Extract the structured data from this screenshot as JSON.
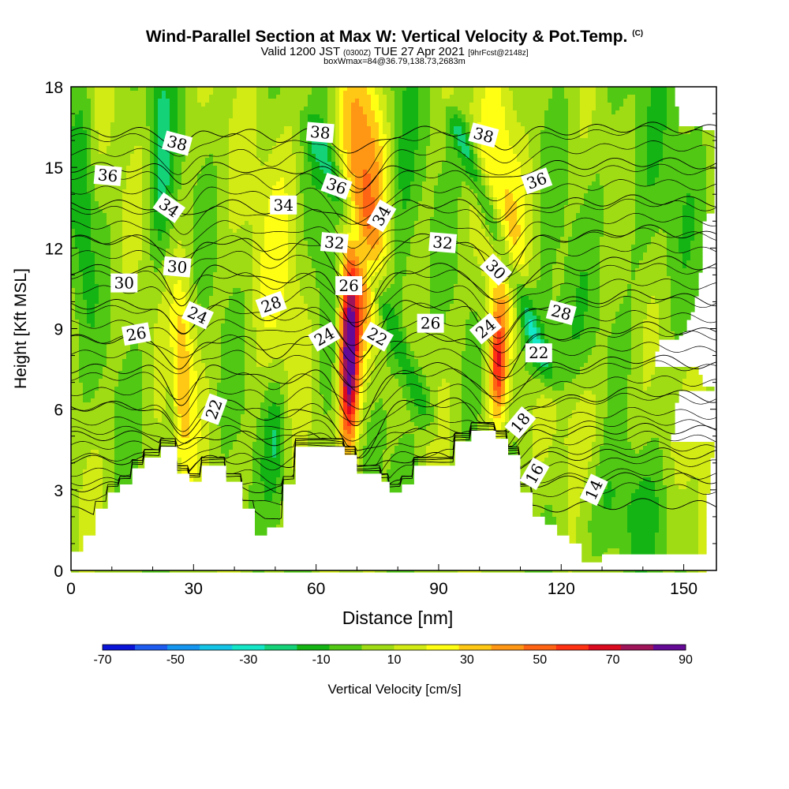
{
  "header": {
    "title": "Wind-Parallel Section at Max W: Vertical Velocity & Pot.Temp.",
    "title_suffix": "(C)",
    "valid_prefix": "Valid 1200 JST",
    "valid_utc": "(0300Z)",
    "valid_date": "TUE 27 Apr 2021",
    "forecast_tag": "[9hrFcst@2148z]",
    "box_info": "boxWmax=84@36.79,138.73,2683m"
  },
  "chart_data": {
    "type": "heatmap",
    "xlabel": "Distance [nm]",
    "ylabel": "Height [Kft MSL]",
    "xlim": [
      0,
      158
    ],
    "ylim": [
      0,
      18
    ],
    "x_ticks": [
      0,
      30,
      60,
      90,
      120,
      150
    ],
    "y_ticks": [
      0,
      3,
      6,
      9,
      12,
      15,
      18
    ],
    "colorbar": {
      "title": "Vertical Velocity [cm/s]",
      "tick_labels": [
        "-70",
        "-50",
        "-30",
        "-10",
        "10",
        "30",
        "50",
        "70",
        "90"
      ],
      "levels": [
        -80,
        -70,
        -60,
        -50,
        -40,
        -30,
        -20,
        -10,
        0,
        10,
        20,
        30,
        40,
        50,
        60,
        70,
        80,
        90
      ],
      "colors": [
        "#0a14d8",
        "#1e5cf0",
        "#1496f0",
        "#14c4e6",
        "#14e6c8",
        "#14d278",
        "#14b414",
        "#50c814",
        "#a0dc14",
        "#d2eb14",
        "#ffff14",
        "#ffc814",
        "#ff9614",
        "#ff6414",
        "#ff3214",
        "#dc0a1e",
        "#a0145a",
        "#640a96"
      ]
    },
    "terrain": {
      "x": [
        0,
        3,
        3,
        6,
        6,
        9,
        9,
        12,
        12,
        15,
        15,
        18,
        18,
        22,
        22,
        26,
        26,
        29,
        29,
        32,
        32,
        38,
        38,
        42,
        42,
        45,
        45,
        48,
        48,
        52,
        52,
        55,
        55,
        67,
        67,
        70,
        70,
        76,
        76,
        78,
        78,
        81,
        81,
        84,
        84,
        94,
        94,
        98,
        98,
        104,
        104,
        107,
        107,
        110,
        110,
        113,
        113,
        116,
        116,
        119,
        119,
        122,
        122,
        125,
        125,
        130,
        130,
        158
      ],
      "y": [
        0.7,
        0.7,
        1.3,
        1.3,
        2.3,
        2.3,
        2.9,
        2.9,
        3.2,
        3.2,
        3.8,
        3.8,
        4.2,
        4.2,
        4.6,
        4.6,
        3.6,
        3.6,
        3.3,
        3.3,
        3.9,
        3.9,
        3.3,
        3.3,
        2.3,
        2.3,
        1.3,
        1.3,
        1.6,
        1.6,
        3.2,
        3.2,
        4.6,
        4.6,
        4.3,
        4.3,
        3.6,
        3.6,
        3.3,
        3.3,
        2.9,
        2.9,
        3.2,
        3.2,
        3.9,
        3.9,
        4.8,
        4.8,
        5.2,
        5.2,
        4.9,
        4.9,
        4.3,
        4.3,
        2.9,
        2.9,
        2.0,
        2.0,
        1.7,
        1.7,
        1.3,
        1.3,
        1.0,
        1.0,
        0.3,
        0.3,
        0.6,
        0.6
      ]
    },
    "w_features": [
      {
        "x": 68,
        "y": 8.0,
        "sx": 1.6,
        "sy": 2.3,
        "w": 92
      },
      {
        "x": 69.5,
        "y": 10.5,
        "sx": 3,
        "sy": 3,
        "w": 30
      },
      {
        "x": 74,
        "y": 13.0,
        "sx": 3.5,
        "sy": 4,
        "w": 25
      },
      {
        "x": 70,
        "y": 16.5,
        "sx": 3.5,
        "sy": 2.5,
        "w": 25
      },
      {
        "x": 104.5,
        "y": 7.7,
        "sx": 1.5,
        "sy": 1.5,
        "w": 55
      },
      {
        "x": 106,
        "y": 13.0,
        "sx": 4,
        "sy": 5,
        "w": 25
      },
      {
        "x": 27,
        "y": 7.3,
        "sx": 2.5,
        "sy": 2.5,
        "w": 35
      },
      {
        "x": 52,
        "y": 12.5,
        "sx": 5,
        "sy": 4,
        "w": 15
      },
      {
        "x": 158,
        "y": 4.5,
        "sx": 3,
        "sy": 4,
        "w": 20
      },
      {
        "x": 126,
        "y": 5.8,
        "sx": 5,
        "sy": 1.5,
        "w": 10
      },
      {
        "x": 80,
        "y": 13.0,
        "sx": 3,
        "sy": 6,
        "w": -15
      },
      {
        "x": 63,
        "y": 13.0,
        "sx": 4,
        "sy": 5,
        "w": -12
      },
      {
        "x": 24.5,
        "y": 6.5,
        "sx": 1.2,
        "sy": 2,
        "w": -20
      },
      {
        "x": 22,
        "y": 15.5,
        "sx": 2,
        "sy": 3,
        "w": -25
      },
      {
        "x": 3,
        "y": 14.0,
        "sx": 2,
        "sy": 3,
        "w": -20
      },
      {
        "x": 50,
        "y": 5.0,
        "sx": 2,
        "sy": 1.5,
        "w": -20
      },
      {
        "x": 115,
        "y": 8.5,
        "sx": 6,
        "sy": 1.5,
        "w": -15
      },
      {
        "x": 136,
        "y": 2.0,
        "sx": 10,
        "sy": 1.5,
        "w": -12
      },
      {
        "x": 140,
        "y": 14.0,
        "sx": 10,
        "sy": 4,
        "w": -8
      }
    ],
    "w_bands": [
      {
        "x0": 62,
        "y0": 15.5,
        "x1": 85,
        "y1": 6.5,
        "sd": 2.0,
        "w": -22
      },
      {
        "x0": 96,
        "y0": 16.0,
        "x1": 115,
        "y1": 8.0,
        "sd": 1.8,
        "w": -30
      }
    ],
    "theta_contours": [
      {
        "level": 14,
        "y0": 2.2,
        "y1": 2.4
      },
      {
        "level": 16,
        "y0": 3.1,
        "y1": 3.4
      },
      {
        "level": 18,
        "y0": 4.1,
        "y1": 4.3
      },
      {
        "level": 20,
        "y0": 5.0,
        "y1": 5.2
      },
      {
        "level": 22,
        "y0": 6.1,
        "y1": 6.4
      },
      {
        "level": 24,
        "y0": 7.5,
        "y1": 7.6
      },
      {
        "level": 26,
        "y0": 8.6,
        "y1": 8.8
      },
      {
        "level": 28,
        "y0": 9.9,
        "y1": 10.0
      },
      {
        "level": 30,
        "y0": 11.2,
        "y1": 11.3
      },
      {
        "level": 32,
        "y0": 12.3,
        "y1": 12.4
      },
      {
        "level": 34,
        "y0": 13.6,
        "y1": 13.7
      },
      {
        "level": 36,
        "y0": 15.0,
        "y1": 15.1
      },
      {
        "level": 38,
        "y0": 16.3,
        "y1": 16.4
      }
    ],
    "contour_labels": [
      {
        "text": "38",
        "x": 26,
        "y": 15.9,
        "rot": 15
      },
      {
        "text": "38",
        "x": 61,
        "y": 16.3,
        "rot": 5
      },
      {
        "text": "38",
        "x": 101,
        "y": 16.2,
        "rot": 15
      },
      {
        "text": "36",
        "x": 9,
        "y": 14.7,
        "rot": 5
      },
      {
        "text": "36",
        "x": 65,
        "y": 14.3,
        "rot": 20
      },
      {
        "text": "36",
        "x": 114,
        "y": 14.5,
        "rot": -20
      },
      {
        "text": "34",
        "x": 24,
        "y": 13.5,
        "rot": 35
      },
      {
        "text": "34",
        "x": 52,
        "y": 13.6,
        "rot": 0
      },
      {
        "text": "34",
        "x": 76,
        "y": 13.2,
        "rot": -60
      },
      {
        "text": "32",
        "x": 64.5,
        "y": 12.2,
        "rot": 5
      },
      {
        "text": "32",
        "x": 91,
        "y": 12.2,
        "rot": 5
      },
      {
        "text": "30",
        "x": 26,
        "y": 11.3,
        "rot": 5
      },
      {
        "text": "30",
        "x": 13,
        "y": 10.7,
        "rot": 0
      },
      {
        "text": "30",
        "x": 104,
        "y": 11.2,
        "rot": 45
      },
      {
        "text": "28",
        "x": 49,
        "y": 9.9,
        "rot": -20
      },
      {
        "text": "28",
        "x": 120,
        "y": 9.6,
        "rot": 15
      },
      {
        "text": "26",
        "x": 68,
        "y": 10.6,
        "rot": 0
      },
      {
        "text": "26",
        "x": 16,
        "y": 8.8,
        "rot": -10
      },
      {
        "text": "26",
        "x": 88,
        "y": 9.2,
        "rot": 0
      },
      {
        "text": "24",
        "x": 31,
        "y": 9.5,
        "rot": 25
      },
      {
        "text": "24",
        "x": 62,
        "y": 8.7,
        "rot": -30
      },
      {
        "text": "24",
        "x": 101.5,
        "y": 9.0,
        "rot": -40
      },
      {
        "text": "22",
        "x": 75,
        "y": 8.7,
        "rot": 30
      },
      {
        "text": "22",
        "x": 114.5,
        "y": 8.1,
        "rot": 0
      },
      {
        "text": "22",
        "x": 35,
        "y": 6.0,
        "rot": -70
      },
      {
        "text": "18",
        "x": 110,
        "y": 5.5,
        "rot": -50
      },
      {
        "text": "16",
        "x": 113.5,
        "y": 3.6,
        "rot": -60
      },
      {
        "text": "14",
        "x": 128,
        "y": 3.0,
        "rot": -65
      }
    ]
  }
}
